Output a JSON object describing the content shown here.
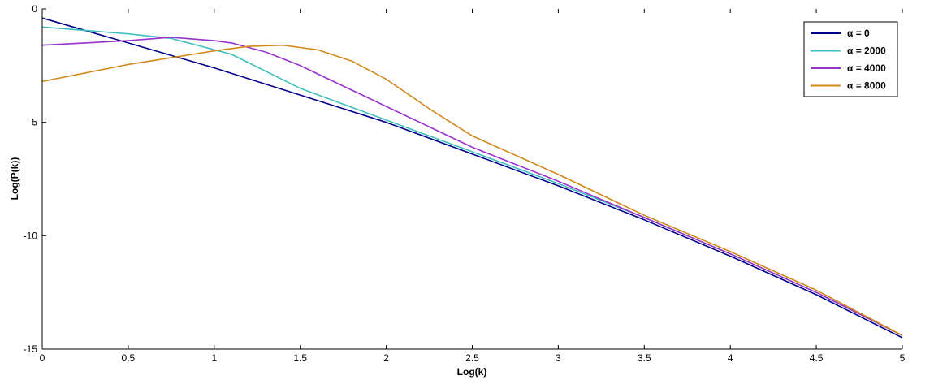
{
  "chart_data": {
    "type": "line",
    "xlabel": "Log(k)",
    "ylabel": "Log(P(k))",
    "xlim": [
      0,
      5
    ],
    "ylim": [
      -15,
      0
    ],
    "xticks": [
      0,
      0.5,
      1,
      1.5,
      2,
      2.5,
      3,
      3.5,
      4,
      4.5,
      5
    ],
    "xtick_labels": [
      "0",
      "0.5",
      "1",
      "1.5",
      "2",
      "2.5",
      "3",
      "3.5",
      "4",
      "4.5",
      "5"
    ],
    "yticks": [
      0,
      -5,
      -10,
      -15
    ],
    "ytick_labels": [
      "0",
      "-5",
      "-10",
      "-15"
    ],
    "grid": false,
    "legend_position": "top-right",
    "series": [
      {
        "name": "α = 0",
        "color": "#00008B",
        "x": [
          0,
          0.5,
          1,
          1.5,
          2,
          2.5,
          3,
          3.5,
          4,
          4.5,
          5
        ],
        "y": [
          -0.4,
          -1.5,
          -2.6,
          -3.8,
          -5.0,
          -6.4,
          -7.8,
          -9.3,
          -10.9,
          -12.6,
          -14.5
        ]
      },
      {
        "name": "α = 2000",
        "color": "#40BFBF",
        "x": [
          0,
          0.5,
          0.75,
          1,
          1.1,
          1.5,
          2,
          2.5,
          3,
          3.5,
          4,
          4.5,
          5
        ],
        "y": [
          -0.8,
          -1.1,
          -1.3,
          -1.8,
          -2.0,
          -3.5,
          -4.9,
          -6.3,
          -7.7,
          -9.2,
          -10.8,
          -12.5,
          -14.4
        ]
      },
      {
        "name": "α = 4000",
        "color": "#9932CC",
        "x": [
          0,
          0.5,
          0.75,
          1,
          1.1,
          1.3,
          1.5,
          1.75,
          2,
          2.5,
          3,
          3.5,
          4,
          4.5,
          5
        ],
        "y": [
          -1.6,
          -1.4,
          -1.25,
          -1.4,
          -1.5,
          -1.9,
          -2.5,
          -3.4,
          -4.3,
          -6.1,
          -7.6,
          -9.2,
          -10.8,
          -12.5,
          -14.4
        ]
      },
      {
        "name": "α = 8000",
        "color": "#D2881A",
        "x": [
          0,
          0.5,
          1,
          1.2,
          1.4,
          1.6,
          1.8,
          2,
          2.25,
          2.5,
          3,
          3.5,
          4,
          4.5,
          5
        ],
        "y": [
          -3.2,
          -2.45,
          -1.85,
          -1.65,
          -1.6,
          -1.8,
          -2.3,
          -3.1,
          -4.4,
          -5.6,
          -7.3,
          -9.1,
          -10.7,
          -12.4,
          -14.4
        ]
      }
    ]
  }
}
